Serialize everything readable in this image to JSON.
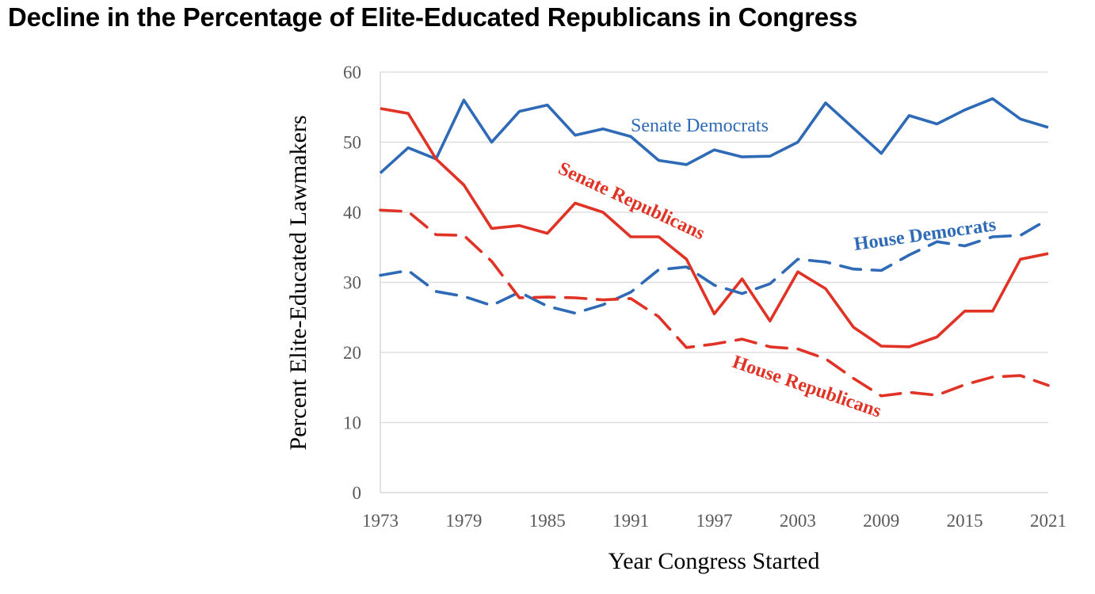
{
  "title": "Decline in the Percentage of Elite-Educated Republicans in Congress",
  "chart_data": {
    "type": "line",
    "title": "Decline in the Percentage of Elite-Educated Republicans in Congress",
    "xlabel": "Year Congress Started",
    "ylabel": "Percent Elite-Educated Lawmakers",
    "ylim": [
      0,
      60
    ],
    "xlim": [
      1973,
      2021
    ],
    "grid": true,
    "legend": "inline-labels",
    "y_ticks": [
      "0",
      "10",
      "20",
      "30",
      "40",
      "50",
      "60"
    ],
    "x_ticks": [
      "1973",
      "1979",
      "1985",
      "1991",
      "1997",
      "2003",
      "2009",
      "2015",
      "2021"
    ],
    "x": [
      1973,
      1975,
      1977,
      1979,
      1981,
      1983,
      1985,
      1987,
      1989,
      1991,
      1993,
      1995,
      1997,
      1999,
      2001,
      2003,
      2005,
      2007,
      2009,
      2011,
      2013,
      2015,
      2017,
      2019,
      2021
    ],
    "series": [
      {
        "name": "Senate Democrats",
        "label": "Senate Democrats",
        "color": "#2E6AB5",
        "style": "solid",
        "values": [
          45.6,
          49.2,
          47.6,
          56.0,
          50.0,
          54.4,
          55.3,
          51.0,
          51.9,
          50.8,
          47.4,
          46.8,
          48.9,
          47.9,
          48.0,
          50.0,
          55.6,
          52.0,
          48.4,
          53.8,
          52.6,
          54.6,
          56.2,
          53.3,
          52.1
        ]
      },
      {
        "name": "Senate Republicans",
        "label": "Senate Republicans",
        "color": "#E03326",
        "style": "solid",
        "values": [
          54.8,
          54.1,
          47.6,
          43.9,
          37.7,
          38.1,
          37.0,
          41.3,
          40.0,
          36.5,
          36.5,
          33.3,
          25.5,
          30.5,
          24.5,
          31.5,
          29.1,
          23.6,
          20.9,
          20.8,
          22.2,
          25.9,
          25.9,
          33.3,
          34.1
        ]
      },
      {
        "name": "House Democrats",
        "label": "House Democrats",
        "color": "#2E6AB5",
        "style": "dashed",
        "values": [
          31.0,
          31.7,
          28.7,
          28.0,
          26.7,
          28.6,
          26.6,
          25.6,
          26.8,
          28.6,
          31.8,
          32.2,
          29.6,
          28.4,
          29.8,
          33.3,
          32.9,
          31.9,
          31.7,
          33.9,
          35.8,
          35.2,
          36.5,
          36.7,
          39.0
        ]
      },
      {
        "name": "House Republicans",
        "label": "House Republicans",
        "color": "#E03326",
        "style": "dashed",
        "values": [
          40.3,
          40.1,
          36.8,
          36.7,
          33.0,
          27.8,
          27.9,
          27.8,
          27.5,
          27.7,
          25.1,
          20.7,
          21.2,
          21.9,
          20.8,
          20.5,
          19.1,
          16.3,
          13.8,
          14.3,
          13.9,
          15.4,
          16.5,
          16.7,
          15.3
        ]
      }
    ]
  }
}
